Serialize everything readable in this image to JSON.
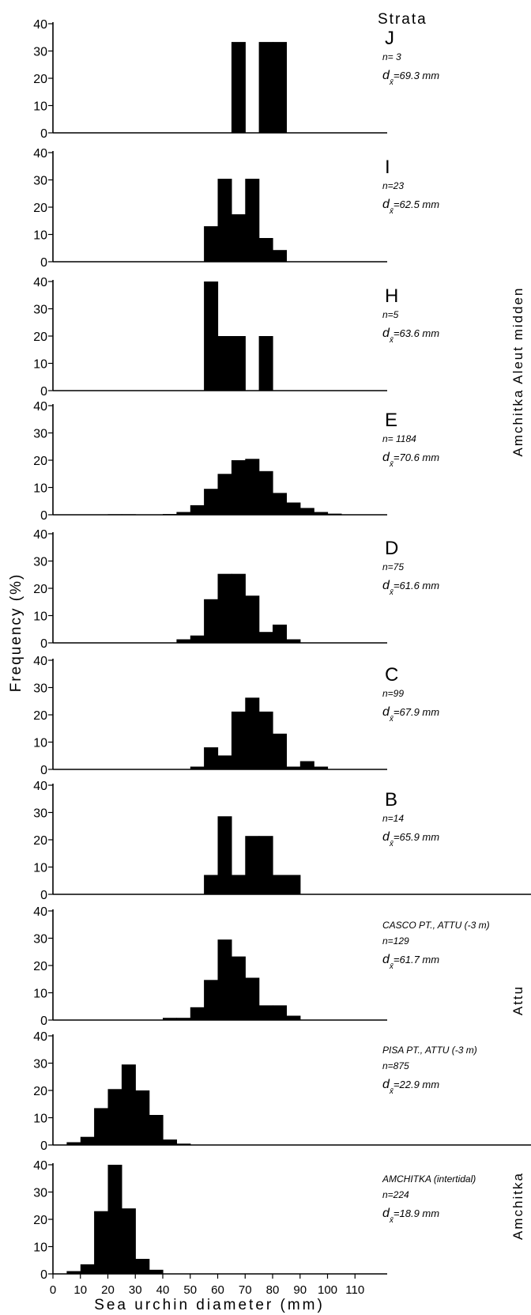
{
  "chart_data": {
    "type": "bar",
    "xlabel": "Sea urchin diameter (mm)",
    "ylabel": "Frequency (%)",
    "header": "Strata",
    "xlim": [
      0,
      115
    ],
    "ylim": [
      0,
      40
    ],
    "x_ticks": [
      0,
      10,
      20,
      30,
      40,
      50,
      60,
      70,
      80,
      90,
      100,
      110
    ],
    "y_ticks": [
      0,
      10,
      20,
      30,
      40
    ],
    "bin_width_mm": 5,
    "groups": [
      {
        "label": "Amchitka Aleut midden",
        "panels": [
          0,
          1,
          2,
          3,
          4,
          5,
          6
        ]
      },
      {
        "label": "Attu",
        "panels": [
          7,
          8
        ]
      },
      {
        "label": "Amchitka",
        "panels": [
          9
        ]
      }
    ],
    "panels": [
      {
        "name": "J",
        "title": "",
        "n": "n= 3",
        "mean": "69.3 mm",
        "bins": [
          [
            65,
            33.3
          ],
          [
            75,
            33.3
          ],
          [
            80,
            33.3
          ]
        ]
      },
      {
        "name": "I",
        "title": "",
        "n": "n=23",
        "mean": "62.5 mm",
        "bins": [
          [
            55,
            13
          ],
          [
            60,
            30.4
          ],
          [
            65,
            17.4
          ],
          [
            70,
            30.4
          ],
          [
            75,
            8.7
          ],
          [
            80,
            4.3
          ]
        ]
      },
      {
        "name": "H",
        "title": "",
        "n": "n=5",
        "mean": "63.6 mm",
        "bins": [
          [
            55,
            40
          ],
          [
            60,
            20
          ],
          [
            65,
            20
          ],
          [
            75,
            20
          ]
        ]
      },
      {
        "name": "E",
        "title": "",
        "n": "n= 1184",
        "mean": "70.6 mm",
        "bins": [
          [
            20,
            0.2
          ],
          [
            25,
            0.2
          ],
          [
            40,
            0.3
          ],
          [
            45,
            1
          ],
          [
            50,
            3.5
          ],
          [
            55,
            9.5
          ],
          [
            60,
            15
          ],
          [
            65,
            20
          ],
          [
            70,
            20.5
          ],
          [
            75,
            16
          ],
          [
            80,
            8
          ],
          [
            85,
            4.5
          ],
          [
            90,
            2.5
          ],
          [
            95,
            1
          ],
          [
            100,
            0.4
          ],
          [
            105,
            0.1
          ]
        ]
      },
      {
        "name": "D",
        "title": "",
        "n": "n=75",
        "mean": "61.6 mm",
        "bins": [
          [
            45,
            1.3
          ],
          [
            50,
            2.7
          ],
          [
            55,
            16
          ],
          [
            60,
            25.3
          ],
          [
            65,
            25.3
          ],
          [
            70,
            17.3
          ],
          [
            75,
            4
          ],
          [
            80,
            6.7
          ],
          [
            85,
            1.3
          ]
        ]
      },
      {
        "name": "C",
        "title": "",
        "n": "n=99",
        "mean": "67.9 mm",
        "bins": [
          [
            50,
            1
          ],
          [
            55,
            8.1
          ],
          [
            60,
            5.1
          ],
          [
            65,
            21.2
          ],
          [
            70,
            26.3
          ],
          [
            75,
            21.2
          ],
          [
            80,
            13.1
          ],
          [
            85,
            1
          ],
          [
            90,
            3
          ],
          [
            95,
            1
          ]
        ]
      },
      {
        "name": "B",
        "title": "",
        "n": "n=14",
        "mean": "65.9 mm",
        "bins": [
          [
            55,
            7.1
          ],
          [
            60,
            28.6
          ],
          [
            65,
            7.1
          ],
          [
            70,
            21.4
          ],
          [
            75,
            21.4
          ],
          [
            80,
            7.1
          ],
          [
            85,
            7.1
          ]
        ]
      },
      {
        "name": "",
        "title": "CASCO PT., ATTU (-3 m)",
        "n": "n=129",
        "mean": "61.7 mm",
        "bins": [
          [
            40,
            0.8
          ],
          [
            45,
            0.8
          ],
          [
            50,
            4.7
          ],
          [
            55,
            14.7
          ],
          [
            60,
            29.5
          ],
          [
            65,
            23.3
          ],
          [
            70,
            15.5
          ],
          [
            75,
            5.4
          ],
          [
            80,
            5.4
          ],
          [
            85,
            1.6
          ]
        ]
      },
      {
        "name": "",
        "title": "PISA PT., ATTU (-3 m)",
        "n": "n=875",
        "mean": "22.9 mm",
        "bins": [
          [
            5,
            1
          ],
          [
            10,
            3
          ],
          [
            15,
            13.5
          ],
          [
            20,
            20.5
          ],
          [
            25,
            29.5
          ],
          [
            30,
            20
          ],
          [
            35,
            11
          ],
          [
            40,
            2
          ],
          [
            45,
            0.5
          ]
        ]
      },
      {
        "name": "",
        "title": "AMCHITKA (intertidal)",
        "n": "n=224",
        "mean": "18.9 mm",
        "bins": [
          [
            5,
            1
          ],
          [
            10,
            3.5
          ],
          [
            15,
            23
          ],
          [
            20,
            40
          ],
          [
            25,
            24
          ],
          [
            30,
            5.5
          ],
          [
            35,
            1.5
          ]
        ]
      }
    ]
  }
}
